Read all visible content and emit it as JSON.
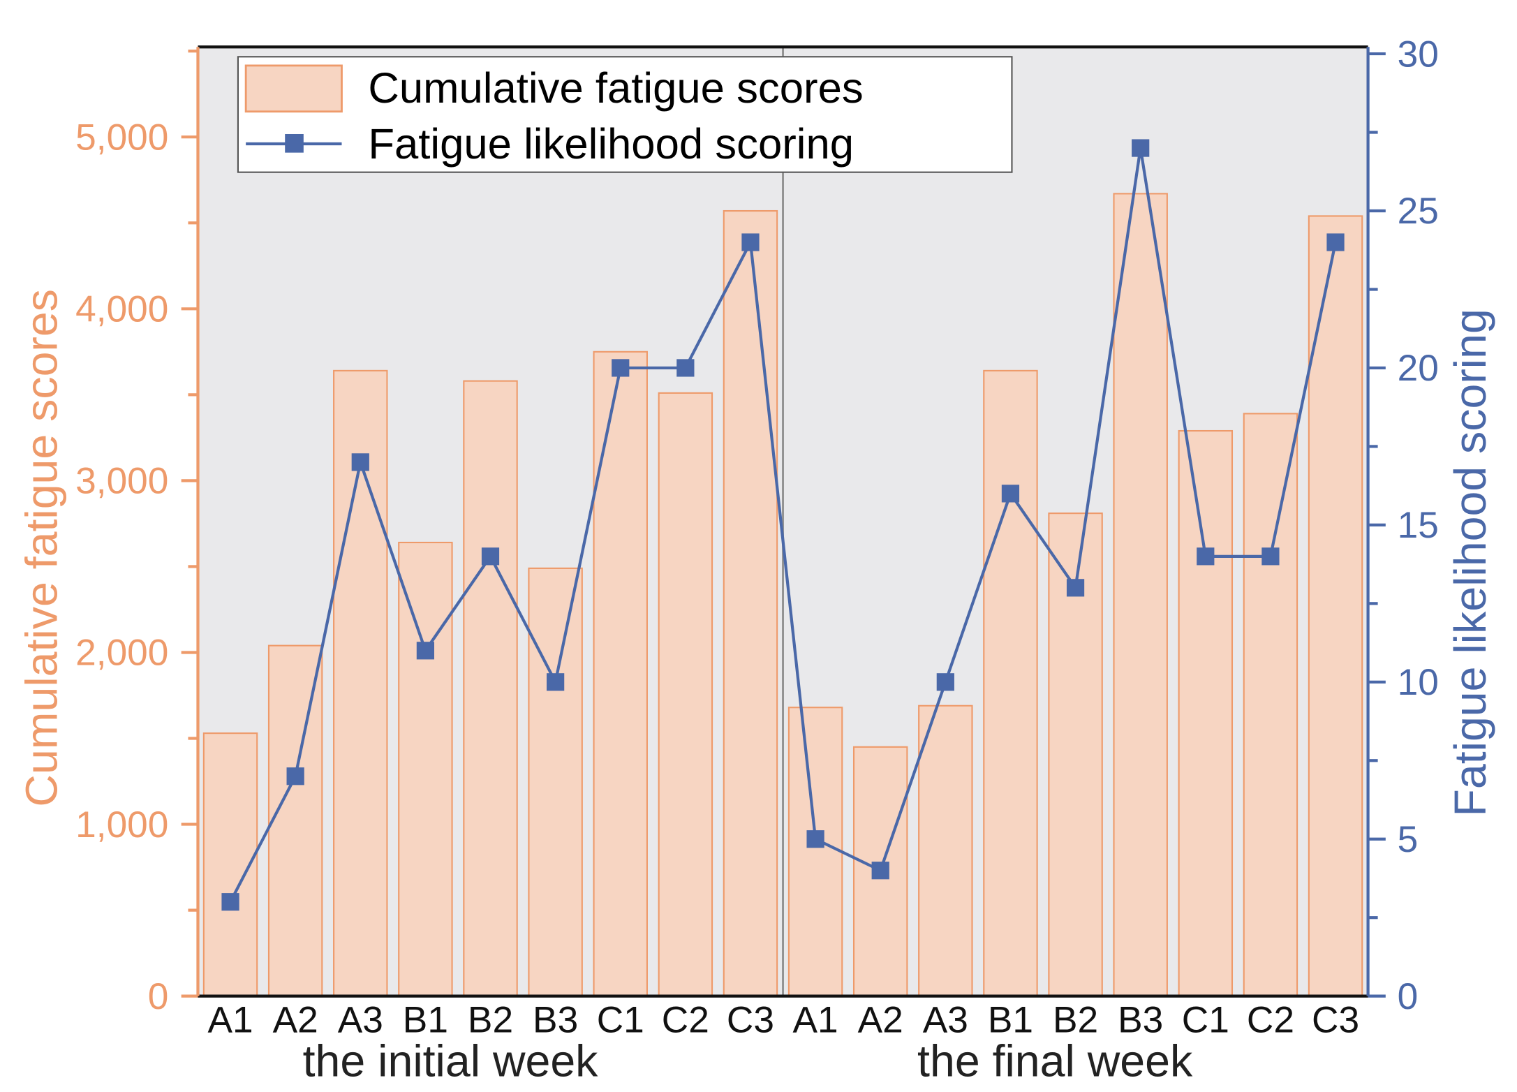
{
  "chart_data": {
    "type": "bar",
    "title": "",
    "categories": [
      "A1",
      "A2",
      "A3",
      "B1",
      "B2",
      "B3",
      "C1",
      "C2",
      "C3",
      "A1",
      "A2",
      "A3",
      "B1",
      "B2",
      "B3",
      "C1",
      "C2",
      "C3"
    ],
    "groups": [
      {
        "label": "the initial week",
        "start": 0,
        "end": 8
      },
      {
        "label": "the final week",
        "start": 9,
        "end": 17
      }
    ],
    "series": [
      {
        "name": "Cumulative fatigue scores",
        "type": "bar",
        "axis": "left",
        "color": "#F7D5C2",
        "edge_color": "#EE9A6A",
        "values": [
          1530,
          2040,
          3640,
          2640,
          3580,
          2490,
          3750,
          3510,
          4570,
          1680,
          1450,
          1690,
          3640,
          2810,
          4670,
          3290,
          3390,
          4540
        ]
      },
      {
        "name": "Fatigue likelihood scoring",
        "type": "line",
        "axis": "right",
        "color": "#4A68A8",
        "marker": "square",
        "values": [
          3,
          7,
          17,
          11,
          14,
          10,
          20,
          20,
          24,
          5,
          4,
          10,
          16,
          13,
          27,
          14,
          14,
          24
        ]
      }
    ],
    "xlabel": "",
    "ylabel": "Cumulative fatigue scores",
    "ylabel_right": "Fatigue likelihood scoring",
    "ylim": [
      0,
      5500
    ],
    "ylim_right": [
      0,
      30
    ],
    "yticks": [
      0,
      1000,
      2000,
      3000,
      4000,
      5000
    ],
    "ytick_labels": [
      "0",
      "1,000",
      "2,000",
      "3,000",
      "4,000",
      "5,000"
    ],
    "yticks_right": [
      0,
      5,
      10,
      15,
      20,
      25,
      30
    ],
    "grid": false,
    "legend_position": "upper left",
    "background": "#E9E9EB"
  },
  "legend": {
    "bar_label": "Cumulative fatigue scores",
    "line_label": "Fatigue likelihood scoring"
  },
  "axes": {
    "left_title": "Cumulative fatigue scores",
    "right_title": "Fatigue likelihood scoring",
    "group_initial": "the initial week",
    "group_final": "the final week"
  }
}
